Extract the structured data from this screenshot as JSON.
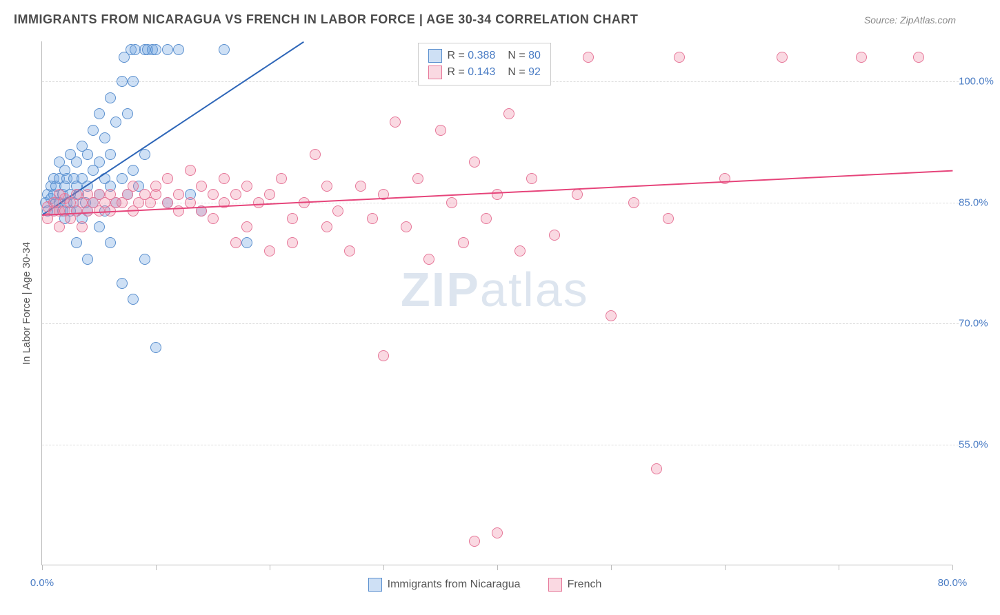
{
  "title": "IMMIGRANTS FROM NICARAGUA VS FRENCH IN LABOR FORCE | AGE 30-34 CORRELATION CHART",
  "source": "Source: ZipAtlas.com",
  "y_axis_title": "In Labor Force | Age 30-34",
  "watermark": {
    "bold": "ZIP",
    "light": "atlas"
  },
  "chart": {
    "type": "scatter",
    "xlim": [
      0,
      80
    ],
    "ylim": [
      40,
      105
    ],
    "xtick_positions": [
      0,
      10,
      20,
      30,
      40,
      50,
      60,
      70,
      80
    ],
    "xtick_labels": {
      "0": "0.0%",
      "80": "80.0%"
    },
    "ytick_positions": [
      55,
      70,
      85,
      100
    ],
    "ytick_labels": {
      "55": "55.0%",
      "70": "70.0%",
      "85": "85.0%",
      "100": "100.0%"
    },
    "grid_color": "#dcdcdc",
    "axis_color": "#bbbbbb",
    "background_color": "#ffffff",
    "marker_radius": 8,
    "marker_stroke_width": 1.5,
    "series": [
      {
        "name": "Immigrants from Nicaragua",
        "color_fill": "rgba(115, 165, 225, 0.35)",
        "color_stroke": "#5a8fce",
        "line_color": "#2e66b8",
        "r": "0.388",
        "n": "80",
        "trend": {
          "x1": 0,
          "y1": 83.5,
          "x2": 23,
          "y2": 105
        },
        "points": [
          [
            0.3,
            85
          ],
          [
            0.5,
            84
          ],
          [
            0.5,
            86
          ],
          [
            0.8,
            85.5
          ],
          [
            0.8,
            87
          ],
          [
            1,
            84
          ],
          [
            1,
            86
          ],
          [
            1,
            88
          ],
          [
            1.2,
            85
          ],
          [
            1.2,
            87
          ],
          [
            1.5,
            85
          ],
          [
            1.5,
            88
          ],
          [
            1.5,
            90
          ],
          [
            1.8,
            84
          ],
          [
            1.8,
            86
          ],
          [
            2,
            83
          ],
          [
            2,
            87
          ],
          [
            2,
            89
          ],
          [
            2.2,
            85
          ],
          [
            2.2,
            88
          ],
          [
            2.5,
            84
          ],
          [
            2.5,
            86
          ],
          [
            2.5,
            91
          ],
          [
            2.8,
            85
          ],
          [
            2.8,
            88
          ],
          [
            3,
            80
          ],
          [
            3,
            84
          ],
          [
            3,
            87
          ],
          [
            3,
            90
          ],
          [
            3.2,
            86
          ],
          [
            3.5,
            83
          ],
          [
            3.5,
            88
          ],
          [
            3.5,
            92
          ],
          [
            3.8,
            85
          ],
          [
            4,
            78
          ],
          [
            4,
            84
          ],
          [
            4,
            87
          ],
          [
            4,
            91
          ],
          [
            4.5,
            85
          ],
          [
            4.5,
            89
          ],
          [
            4.5,
            94
          ],
          [
            5,
            82
          ],
          [
            5,
            86
          ],
          [
            5,
            90
          ],
          [
            5,
            96
          ],
          [
            5.5,
            84
          ],
          [
            5.5,
            88
          ],
          [
            5.5,
            93
          ],
          [
            6,
            80
          ],
          [
            6,
            87
          ],
          [
            6,
            91
          ],
          [
            6,
            98
          ],
          [
            6.5,
            85
          ],
          [
            6.5,
            95
          ],
          [
            7,
            75
          ],
          [
            7,
            88
          ],
          [
            7,
            100
          ],
          [
            7.2,
            103
          ],
          [
            7.5,
            86
          ],
          [
            7.5,
            96
          ],
          [
            7.8,
            104
          ],
          [
            8,
            73
          ],
          [
            8,
            89
          ],
          [
            8,
            100
          ],
          [
            8.2,
            104
          ],
          [
            8.5,
            87
          ],
          [
            9,
            78
          ],
          [
            9,
            91
          ],
          [
            9,
            104
          ],
          [
            9.3,
            104
          ],
          [
            9.7,
            104
          ],
          [
            10,
            67
          ],
          [
            10,
            104
          ],
          [
            11,
            85
          ],
          [
            11,
            104
          ],
          [
            12,
            104
          ],
          [
            13,
            86
          ],
          [
            14,
            84
          ],
          [
            16,
            104
          ],
          [
            18,
            80
          ]
        ]
      },
      {
        "name": "French",
        "color_fill": "rgba(240, 130, 160, 0.30)",
        "color_stroke": "#e67698",
        "line_color": "#e6447a",
        "r": "0.143",
        "n": "92",
        "trend": {
          "x1": 0,
          "y1": 83.5,
          "x2": 80,
          "y2": 89
        },
        "points": [
          [
            0.5,
            83
          ],
          [
            0.5,
            84.5
          ],
          [
            1,
            84
          ],
          [
            1,
            85
          ],
          [
            1.5,
            82
          ],
          [
            1.5,
            84
          ],
          [
            1.5,
            86
          ],
          [
            2,
            84
          ],
          [
            2,
            85.5
          ],
          [
            2.5,
            83
          ],
          [
            2.5,
            85
          ],
          [
            3,
            84
          ],
          [
            3,
            86
          ],
          [
            3.5,
            82
          ],
          [
            3.5,
            85
          ],
          [
            4,
            84
          ],
          [
            4,
            86
          ],
          [
            4.5,
            85
          ],
          [
            5,
            84
          ],
          [
            5,
            86
          ],
          [
            5.5,
            85
          ],
          [
            6,
            84
          ],
          [
            6,
            86
          ],
          [
            6.5,
            85
          ],
          [
            7,
            85
          ],
          [
            7.5,
            86
          ],
          [
            8,
            84
          ],
          [
            8,
            87
          ],
          [
            8.5,
            85
          ],
          [
            9,
            86
          ],
          [
            9.5,
            85
          ],
          [
            10,
            86
          ],
          [
            10,
            87
          ],
          [
            11,
            85
          ],
          [
            11,
            88
          ],
          [
            12,
            84
          ],
          [
            12,
            86
          ],
          [
            13,
            85
          ],
          [
            13,
            89
          ],
          [
            14,
            84
          ],
          [
            14,
            87
          ],
          [
            15,
            83
          ],
          [
            15,
            86
          ],
          [
            16,
            85
          ],
          [
            16,
            88
          ],
          [
            17,
            80
          ],
          [
            17,
            86
          ],
          [
            18,
            82
          ],
          [
            18,
            87
          ],
          [
            19,
            85
          ],
          [
            20,
            79
          ],
          [
            20,
            86
          ],
          [
            21,
            88
          ],
          [
            22,
            83
          ],
          [
            22,
            80
          ],
          [
            23,
            85
          ],
          [
            24,
            91
          ],
          [
            25,
            82
          ],
          [
            25,
            87
          ],
          [
            26,
            84
          ],
          [
            27,
            79
          ],
          [
            28,
            87
          ],
          [
            29,
            83
          ],
          [
            30,
            66
          ],
          [
            30,
            86
          ],
          [
            31,
            95
          ],
          [
            32,
            82
          ],
          [
            33,
            88
          ],
          [
            34,
            78
          ],
          [
            35,
            94
          ],
          [
            36,
            85
          ],
          [
            37,
            80
          ],
          [
            38,
            43
          ],
          [
            38,
            90
          ],
          [
            39,
            83
          ],
          [
            40,
            44
          ],
          [
            40,
            86
          ],
          [
            41,
            96
          ],
          [
            42,
            79
          ],
          [
            43,
            88
          ],
          [
            45,
            81
          ],
          [
            47,
            86
          ],
          [
            48,
            103
          ],
          [
            50,
            71
          ],
          [
            52,
            85
          ],
          [
            54,
            52
          ],
          [
            55,
            83
          ],
          [
            56,
            103
          ],
          [
            60,
            88
          ],
          [
            65,
            103
          ],
          [
            72,
            103
          ],
          [
            77,
            103
          ]
        ]
      }
    ]
  },
  "legend_bottom": [
    {
      "label": "Immigrants from Nicaragua",
      "fill": "rgba(115,165,225,0.35)",
      "stroke": "#5a8fce"
    },
    {
      "label": "French",
      "fill": "rgba(240,130,160,0.30)",
      "stroke": "#e67698"
    }
  ]
}
